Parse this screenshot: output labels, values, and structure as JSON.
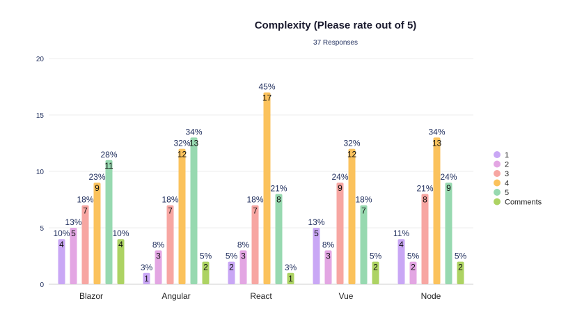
{
  "chart_data": {
    "type": "bar",
    "title": "Complexity (Please rate out of 5)",
    "subtitle": "37 Responses",
    "categories": [
      "Blazor",
      "Angular",
      "React",
      "Vue",
      "Node"
    ],
    "ylim": [
      0,
      20
    ],
    "yticks": [
      0,
      5,
      10,
      15,
      20
    ],
    "grid": true,
    "legend_position": "right",
    "series": [
      {
        "name": "1",
        "color": "#c9a7f5",
        "values": [
          4,
          1,
          2,
          5,
          4
        ],
        "labels": [
          "10%",
          "3%",
          "5%",
          "13%",
          "11%"
        ]
      },
      {
        "name": "2",
        "color": "#e3a6e3",
        "values": [
          5,
          3,
          3,
          3,
          2
        ],
        "labels": [
          "13%",
          "8%",
          "8%",
          "8%",
          "5%"
        ]
      },
      {
        "name": "3",
        "color": "#f7a6a2",
        "values": [
          7,
          7,
          7,
          9,
          8
        ],
        "labels": [
          "18%",
          "18%",
          "18%",
          "24%",
          "21%"
        ]
      },
      {
        "name": "4",
        "color": "#fbc25c",
        "values": [
          9,
          12,
          17,
          12,
          13
        ],
        "labels": [
          "23%",
          "32%",
          "45%",
          "32%",
          "34%"
        ]
      },
      {
        "name": "5",
        "color": "#97d9b0",
        "values": [
          11,
          13,
          8,
          7,
          9
        ],
        "labels": [
          "28%",
          "34%",
          "21%",
          "18%",
          "24%"
        ]
      },
      {
        "name": "Comments",
        "color": "#add363",
        "values": [
          4,
          2,
          1,
          2,
          2
        ],
        "labels": [
          "10%",
          "5%",
          "3%",
          "5%",
          "5%"
        ]
      }
    ]
  }
}
